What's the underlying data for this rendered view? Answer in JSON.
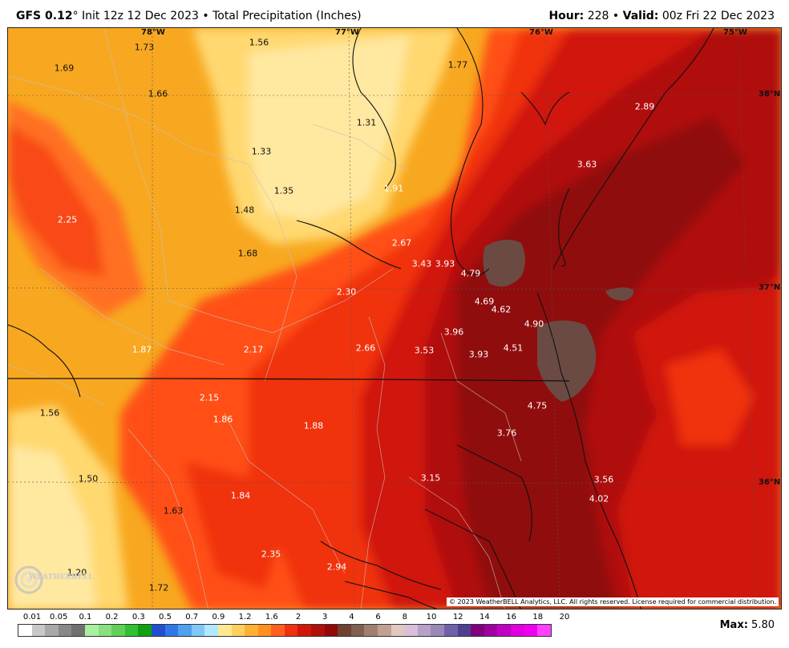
{
  "header": {
    "model": "GFS 0.12",
    "degree": "°",
    "init": "Init 12z 12 Dec 2023",
    "sep": "•",
    "product": "Total Precipitation (Inches)",
    "hour_label": "Hour:",
    "hour_value": "228",
    "valid_label": "Valid:",
    "valid_value": "00z Fri 22 Dec 2023"
  },
  "axes": {
    "lon": [
      "78°W",
      "77°W",
      "76°W",
      "75°W"
    ],
    "lat": [
      "38°N",
      "37°N",
      "36°N"
    ]
  },
  "precip_labels": [
    {
      "v": "1.73",
      "c": "d"
    },
    {
      "v": "1.56",
      "c": "d"
    },
    {
      "v": "1.77",
      "c": "d"
    },
    {
      "v": "1.69",
      "c": "d"
    },
    {
      "v": "1.66",
      "c": "d"
    },
    {
      "v": "2.89",
      "c": "w"
    },
    {
      "v": "1.31",
      "c": "d"
    },
    {
      "v": "1.33",
      "c": "d"
    },
    {
      "v": "3.63",
      "c": "w"
    },
    {
      "v": "1.35",
      "c": "d"
    },
    {
      "v": "1.91",
      "c": "w"
    },
    {
      "v": "2.25",
      "c": "w"
    },
    {
      "v": "1.48",
      "c": "d"
    },
    {
      "v": "2.67",
      "c": "w"
    },
    {
      "v": "1.68",
      "c": "d"
    },
    {
      "v": "3.43",
      "c": "w"
    },
    {
      "v": "3.93",
      "c": "w"
    },
    {
      "v": "4.79",
      "c": "w"
    },
    {
      "v": "2.30",
      "c": "w"
    },
    {
      "v": "4.69",
      "c": "w"
    },
    {
      "v": "4.62",
      "c": "w"
    },
    {
      "v": "4.90",
      "c": "w"
    },
    {
      "v": "3.96",
      "c": "w"
    },
    {
      "v": "1.87",
      "c": "w"
    },
    {
      "v": "2.17",
      "c": "w"
    },
    {
      "v": "2.66",
      "c": "w"
    },
    {
      "v": "3.53",
      "c": "w"
    },
    {
      "v": "3.93",
      "c": "w"
    },
    {
      "v": "4.51",
      "c": "w"
    },
    {
      "v": "2.15",
      "c": "w"
    },
    {
      "v": "4.75",
      "c": "w"
    },
    {
      "v": "1.56",
      "c": "d"
    },
    {
      "v": "1.86",
      "c": "w"
    },
    {
      "v": "1.88",
      "c": "w"
    },
    {
      "v": "3.76",
      "c": "w"
    },
    {
      "v": "1.50",
      "c": "d"
    },
    {
      "v": "3.15",
      "c": "w"
    },
    {
      "v": "3.56",
      "c": "w"
    },
    {
      "v": "4.02",
      "c": "w"
    },
    {
      "v": "1.84",
      "c": "w"
    },
    {
      "v": "1.63",
      "c": "d"
    },
    {
      "v": "2.35",
      "c": "w"
    },
    {
      "v": "2.94",
      "c": "w"
    },
    {
      "v": "1.20",
      "c": "d"
    },
    {
      "v": "1.72",
      "c": "d"
    }
  ],
  "copyright": "© 2023 WeatherBELL Analytics, LLC. All rights reserved. License required for commercial distribution.",
  "logo": "WEATHERBELL",
  "legend": {
    "labels": [
      "0.01",
      "0.05",
      "0.1",
      "0.2",
      "0.3",
      "0.5",
      "0.7",
      "0.9",
      "1.2",
      "1.6",
      "2",
      "3",
      "4",
      "6",
      "8",
      "10",
      "12",
      "14",
      "16",
      "18",
      "20"
    ],
    "colors": [
      "#ffffff",
      "#c8c8c8",
      "#a8a8a8",
      "#888888",
      "#707070",
      "#a8f0a0",
      "#88e080",
      "#60d058",
      "#30c030",
      "#10a010",
      "#2050d0",
      "#3078e8",
      "#50a0f0",
      "#80c8f8",
      "#b0e8ff",
      "#ffe890",
      "#ffd060",
      "#ffb030",
      "#ff9020",
      "#ff6020",
      "#f03010",
      "#d01808",
      "#b01008",
      "#900808",
      "#704030",
      "#806050",
      "#a08070",
      "#c0a090",
      "#e0c8c0",
      "#d8c0d8",
      "#b8a0c8",
      "#9888b8",
      "#7060a8",
      "#504090",
      "#800080",
      "#a000a0",
      "#c000c0",
      "#e000e0",
      "#f000f0",
      "#ff40ff"
    ]
  },
  "max": {
    "label": "Max:",
    "value": "5.80"
  }
}
